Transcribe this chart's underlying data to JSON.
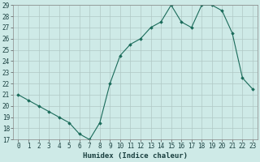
{
  "x": [
    0,
    1,
    2,
    3,
    4,
    5,
    6,
    7,
    8,
    9,
    10,
    11,
    12,
    13,
    14,
    15,
    16,
    17,
    18,
    19,
    20,
    21,
    22,
    23
  ],
  "y": [
    21.0,
    20.5,
    20.0,
    19.5,
    19.0,
    18.5,
    17.5,
    17.0,
    18.5,
    22.0,
    24.5,
    25.5,
    26.0,
    27.0,
    27.5,
    29.0,
    27.5,
    27.0,
    29.0,
    29.0,
    28.5,
    26.5,
    22.5,
    21.5
  ],
  "line_color": "#1a6b5a",
  "marker": "D",
  "marker_size": 1.8,
  "bg_color": "#ceeae7",
  "grid_color": "#b0c8c5",
  "xlabel": "Humidex (Indice chaleur)",
  "ylim": [
    17,
    29
  ],
  "xlim": [
    -0.5,
    23.5
  ],
  "yticks": [
    17,
    18,
    19,
    20,
    21,
    22,
    23,
    24,
    25,
    26,
    27,
    28,
    29
  ],
  "xticks": [
    0,
    1,
    2,
    3,
    4,
    5,
    6,
    7,
    8,
    9,
    10,
    11,
    12,
    13,
    14,
    15,
    16,
    17,
    18,
    19,
    20,
    21,
    22,
    23
  ],
  "tick_label_fontsize": 5.5,
  "xlabel_fontsize": 6.5
}
